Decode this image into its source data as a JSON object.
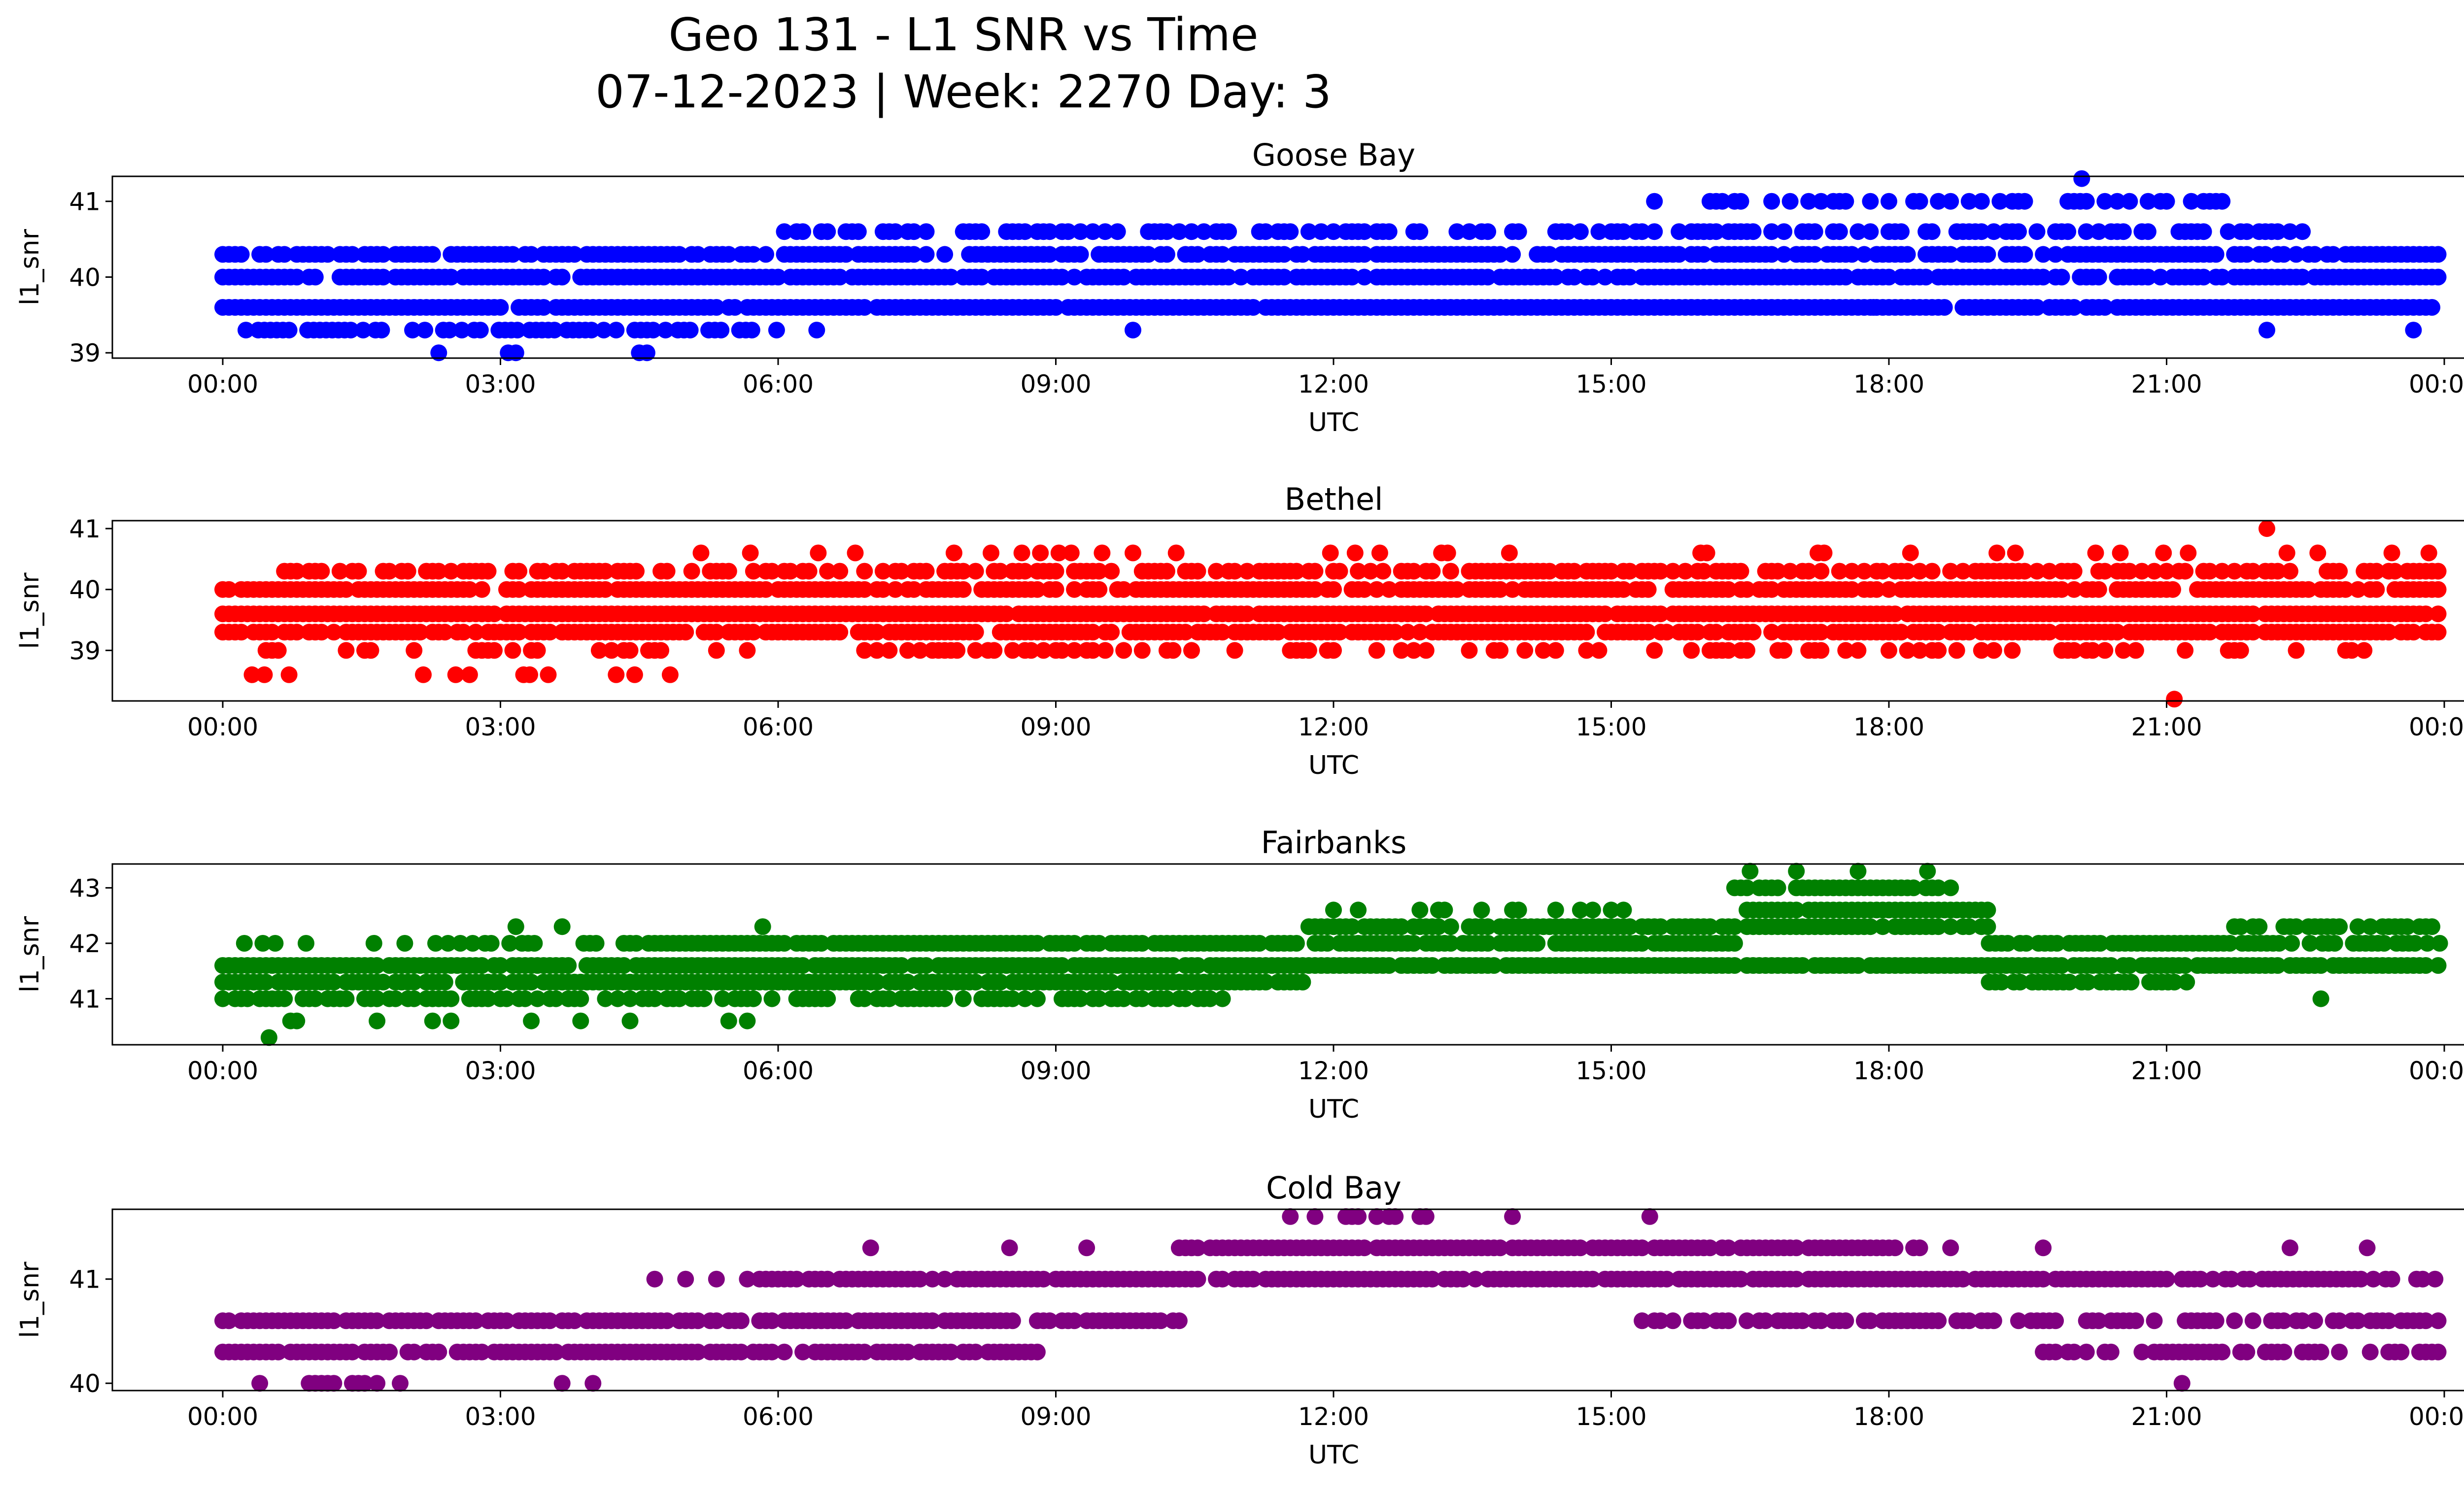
{
  "figure": {
    "title_line1": "Geo 131 - L1 SNR vs Time",
    "title_line2": "07-12-2023 | Week: 2270 Day: 3"
  },
  "chart_data": [
    {
      "type": "scatter",
      "title": "Goose Bay",
      "xlabel": "UTC",
      "ylabel": "l1_snr",
      "color": "#0000ff",
      "xlim": [
        "23:00",
        "01:30"
      ],
      "ylim": [
        38.93,
        41.33
      ],
      "x_ticks": [
        "00:00",
        "03:00",
        "06:00",
        "09:00",
        "12:00",
        "15:00",
        "18:00",
        "21:00",
        "00:00"
      ],
      "y_ticks": [
        39,
        40,
        41
      ],
      "bands": [
        {
          "y": 39.6,
          "start": "00:00",
          "end": "23:59",
          "density": 0.97
        },
        {
          "y": 40.0,
          "start": "00:00",
          "end": "23:59",
          "density": 0.9
        },
        {
          "y": 40.3,
          "start": "00:00",
          "end": "23:59",
          "density": 0.8
        },
        {
          "y": 39.3,
          "start": "00:15",
          "end": "06:00",
          "density": 0.55
        },
        {
          "y": 40.6,
          "start": "06:00",
          "end": "22:30",
          "density": 0.5
        },
        {
          "y": 41.0,
          "start": "15:20",
          "end": "21:40",
          "density": 0.45
        }
      ],
      "points": [
        {
          "x": "02:20",
          "y": 39.0
        },
        {
          "x": "03:10",
          "y": 39.0
        },
        {
          "x": "03:05",
          "y": 39.0
        },
        {
          "x": "04:30",
          "y": 39.0
        },
        {
          "x": "04:35",
          "y": 39.0
        },
        {
          "x": "09:50",
          "y": 39.3
        },
        {
          "x": "20:05",
          "y": 41.3
        },
        {
          "x": "22:05",
          "y": 39.3
        },
        {
          "x": "23:40",
          "y": 39.3
        },
        {
          "x": "06:25",
          "y": 39.3
        },
        {
          "x": "17:50",
          "y": 39.6
        }
      ]
    },
    {
      "type": "scatter",
      "title": "Bethel",
      "xlabel": "UTC",
      "ylabel": "l1_snr",
      "color": "#ff0000",
      "xlim": [
        "23:00",
        "01:30"
      ],
      "ylim": [
        38.17,
        41.13
      ],
      "x_ticks": [
        "00:00",
        "03:00",
        "06:00",
        "09:00",
        "12:00",
        "15:00",
        "18:00",
        "21:00",
        "00:00"
      ],
      "y_ticks": [
        39,
        40,
        41
      ],
      "bands": [
        {
          "y": 39.6,
          "start": "00:00",
          "end": "23:59",
          "density": 0.97
        },
        {
          "y": 39.3,
          "start": "00:00",
          "end": "23:59",
          "density": 0.85
        },
        {
          "y": 40.0,
          "start": "00:00",
          "end": "23:59",
          "density": 0.85
        },
        {
          "y": 39.0,
          "start": "00:00",
          "end": "23:59",
          "density": 0.35
        },
        {
          "y": 40.3,
          "start": "00:40",
          "end": "23:59",
          "density": 0.6
        },
        {
          "y": 40.6,
          "start": "04:50",
          "end": "23:59",
          "density": 0.12
        },
        {
          "y": 38.6,
          "start": "00:15",
          "end": "04:50",
          "density": 0.1
        }
      ],
      "points": [
        {
          "x": "21:05",
          "y": 38.2
        },
        {
          "x": "22:05",
          "y": 41.0
        },
        {
          "x": "02:10",
          "y": 38.6
        },
        {
          "x": "02:40",
          "y": 38.6
        },
        {
          "x": "04:50",
          "y": 38.6
        }
      ]
    },
    {
      "type": "scatter",
      "title": "Fairbanks",
      "xlabel": "UTC",
      "ylabel": "l1_snr",
      "color": "#008000",
      "xlim": [
        "23:00",
        "01:30"
      ],
      "ylim": [
        40.17,
        43.43
      ],
      "x_ticks": [
        "00:00",
        "03:00",
        "06:00",
        "09:00",
        "12:00",
        "15:00",
        "18:00",
        "21:00",
        "00:00"
      ],
      "y_ticks": [
        41,
        42,
        43
      ],
      "bands": [
        {
          "y": 41.3,
          "start": "00:00",
          "end": "11:40",
          "density": 0.95
        },
        {
          "y": 41.6,
          "start": "00:00",
          "end": "23:59",
          "density": 0.92
        },
        {
          "y": 41.0,
          "start": "00:00",
          "end": "10:50",
          "density": 0.6
        },
        {
          "y": 42.0,
          "start": "04:20",
          "end": "16:20",
          "density": 0.9
        },
        {
          "y": 42.3,
          "start": "11:40",
          "end": "19:05",
          "density": 0.88
        },
        {
          "y": 42.6,
          "start": "16:20",
          "end": "19:05",
          "density": 0.9
        },
        {
          "y": 43.0,
          "start": "16:20",
          "end": "18:40",
          "density": 0.8
        },
        {
          "y": 42.0,
          "start": "19:05",
          "end": "23:59",
          "density": 0.85
        },
        {
          "y": 42.3,
          "start": "21:40",
          "end": "23:59",
          "density": 0.6
        },
        {
          "y": 41.3,
          "start": "19:05",
          "end": "21:20",
          "density": 0.75
        },
        {
          "y": 42.6,
          "start": "12:00",
          "end": "16:00",
          "density": 0.25
        },
        {
          "y": 40.6,
          "start": "00:20",
          "end": "05:50",
          "density": 0.15
        },
        {
          "y": 42.0,
          "start": "00:10",
          "end": "04:20",
          "density": 0.3
        }
      ],
      "points": [
        {
          "x": "00:30",
          "y": 40.3
        },
        {
          "x": "16:30",
          "y": 43.3
        },
        {
          "x": "17:00",
          "y": 43.3
        },
        {
          "x": "17:40",
          "y": 43.3
        },
        {
          "x": "18:25",
          "y": 43.3
        },
        {
          "x": "03:10",
          "y": 42.3
        },
        {
          "x": "03:40",
          "y": 42.3
        },
        {
          "x": "05:50",
          "y": 42.3
        },
        {
          "x": "22:40",
          "y": 41.0
        }
      ]
    },
    {
      "type": "scatter",
      "title": "Cold Bay",
      "xlabel": "UTC",
      "ylabel": "l1_snr",
      "color": "#800080",
      "xlim": [
        "23:00",
        "01:30"
      ],
      "ylim": [
        39.93,
        41.67
      ],
      "x_ticks": [
        "00:00",
        "03:00",
        "06:00",
        "09:00",
        "12:00",
        "15:00",
        "18:00",
        "21:00",
        "00:00"
      ],
      "y_ticks": [
        40,
        41
      ],
      "bands": [
        {
          "y": 40.6,
          "start": "00:00",
          "end": "10:20",
          "density": 0.9
        },
        {
          "y": 40.3,
          "start": "00:00",
          "end": "08:50",
          "density": 0.85
        },
        {
          "y": 41.0,
          "start": "05:40",
          "end": "21:00",
          "density": 0.92
        },
        {
          "y": 41.0,
          "start": "21:10",
          "end": "23:59",
          "density": 0.7
        },
        {
          "y": 41.3,
          "start": "10:20",
          "end": "18:20",
          "density": 0.92
        },
        {
          "y": 40.6,
          "start": "15:20",
          "end": "23:59",
          "density": 0.65
        },
        {
          "y": 40.3,
          "start": "19:40",
          "end": "23:59",
          "density": 0.7
        },
        {
          "y": 41.6,
          "start": "11:20",
          "end": "14:20",
          "density": 0.35
        },
        {
          "y": 40.0,
          "start": "00:20",
          "end": "01:40",
          "density": 0.55
        }
      ],
      "points": [
        {
          "x": "04:40",
          "y": 41.0
        },
        {
          "x": "05:00",
          "y": 41.0
        },
        {
          "x": "05:20",
          "y": 41.0
        },
        {
          "x": "07:00",
          "y": 41.3
        },
        {
          "x": "08:30",
          "y": 41.3
        },
        {
          "x": "09:20",
          "y": 41.3
        },
        {
          "x": "15:25",
          "y": 41.6
        },
        {
          "x": "21:10",
          "y": 40.0
        },
        {
          "x": "03:40",
          "y": 40.0
        },
        {
          "x": "04:00",
          "y": 40.0
        },
        {
          "x": "01:55",
          "y": 40.0
        },
        {
          "x": "22:20",
          "y": 41.3
        },
        {
          "x": "23:10",
          "y": 41.3
        },
        {
          "x": "18:40",
          "y": 41.3
        },
        {
          "x": "19:40",
          "y": 41.3
        }
      ]
    }
  ]
}
